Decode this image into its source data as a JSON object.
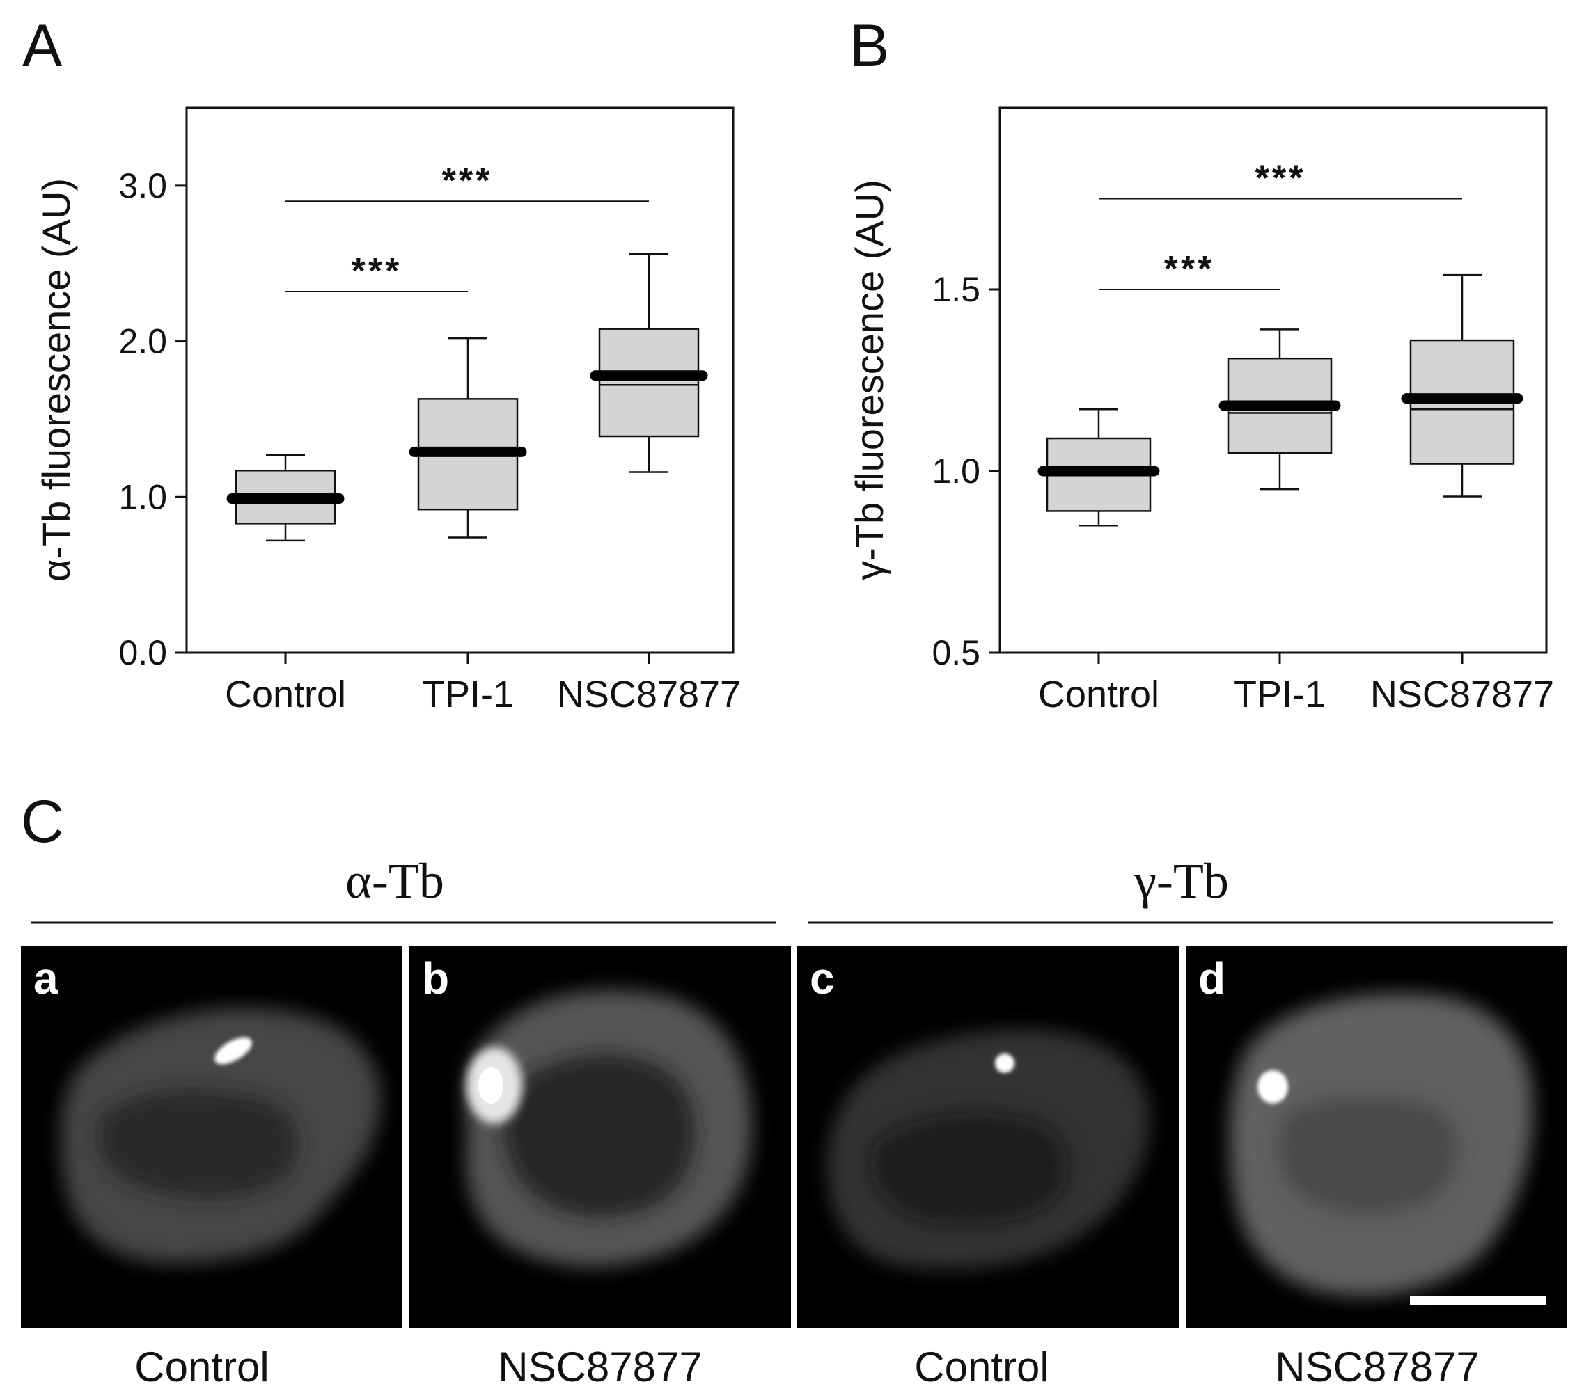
{
  "panels": [
    {
      "letter": "A"
    },
    {
      "letter": "B"
    },
    {
      "letter": "C"
    }
  ],
  "chart_data": [
    {
      "type": "box",
      "panel": "A",
      "ylabel": "α-Tb fluorescence (AU)",
      "ylim": [
        0.0,
        3.5
      ],
      "yticks": [
        0.0,
        1.0,
        2.0,
        3.0
      ],
      "ytick_labels": [
        "0.0",
        "1.0",
        "2.0",
        "3.0"
      ],
      "categories": [
        "Control",
        "TPI-1",
        "NSC87877"
      ],
      "boxes": [
        {
          "whisker_low": 0.72,
          "q1": 0.83,
          "median": 0.99,
          "mean": 0.99,
          "q3": 1.17,
          "whisker_high": 1.27
        },
        {
          "whisker_low": 0.74,
          "q1": 0.92,
          "median": 1.27,
          "mean": 1.29,
          "q3": 1.63,
          "whisker_high": 2.02
        },
        {
          "whisker_low": 1.16,
          "q1": 1.39,
          "median": 1.72,
          "mean": 1.78,
          "q3": 2.08,
          "whisker_high": 2.56
        }
      ],
      "significance": [
        {
          "from": 0,
          "to": 1,
          "y": 2.32,
          "label": "***"
        },
        {
          "from": 0,
          "to": 2,
          "y": 2.9,
          "label": "***"
        }
      ]
    },
    {
      "type": "box",
      "panel": "B",
      "ylabel": "γ-Tb fluorescence (AU)",
      "ylim": [
        0.5,
        2.0
      ],
      "yticks": [
        0.5,
        1.0,
        1.5
      ],
      "ytick_labels": [
        "0.5",
        "1.0",
        "1.5"
      ],
      "categories": [
        "Control",
        "TPI-1",
        "NSC87877"
      ],
      "boxes": [
        {
          "whisker_low": 0.85,
          "q1": 0.89,
          "median": 1.0,
          "mean": 1.0,
          "q3": 1.09,
          "whisker_high": 1.17
        },
        {
          "whisker_low": 0.95,
          "q1": 1.05,
          "median": 1.16,
          "mean": 1.18,
          "q3": 1.31,
          "whisker_high": 1.39
        },
        {
          "whisker_low": 0.93,
          "q1": 1.02,
          "median": 1.17,
          "mean": 1.2,
          "q3": 1.36,
          "whisker_high": 1.54
        }
      ],
      "significance": [
        {
          "from": 0,
          "to": 1,
          "y": 1.5,
          "label": "***"
        },
        {
          "from": 0,
          "to": 2,
          "y": 1.75,
          "label": "***"
        }
      ]
    }
  ],
  "panel_c": {
    "groups": [
      {
        "label": "α-Tb"
      },
      {
        "label": "γ-Tb"
      }
    ],
    "images": [
      {
        "letter": "a",
        "caption": "Control"
      },
      {
        "letter": "b",
        "caption": "NSC87877"
      },
      {
        "letter": "c",
        "caption": "Control"
      },
      {
        "letter": "d",
        "caption": "NSC87877"
      }
    ]
  }
}
